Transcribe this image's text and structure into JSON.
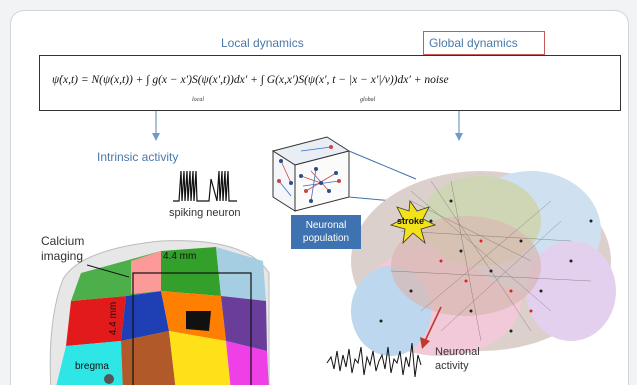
{
  "header": {
    "local_label": "Local dynamics",
    "global_label": "Global dynamics"
  },
  "equation": {
    "text": "ψ̇(x,t) = N(ψ(x,t)) + ∫ g(x − x′)S(ψ(x′,t))dx′ + ∫ G(x,x′)S(ψ(x′, t − |x − x′|/v))dx′ + noise",
    "sub_local": "local",
    "sub_global": "global"
  },
  "labels": {
    "intrinsic": "Intrinsic activity",
    "spiking": "spiking neuron",
    "population": "Neuronal population",
    "calcium": "Calcium imaging",
    "mm_horizontal": "4.4 mm",
    "mm_vertical": "4.4 mm",
    "bregma": "bregma",
    "stroke": "stroke",
    "neuronal_activity": "Neuronal activity"
  },
  "colors": {
    "label_blue": "#4a78a8",
    "highlight_red": "#c85a5a",
    "population_box": "#3f72b0",
    "stroke_star": "#f2e21a"
  }
}
